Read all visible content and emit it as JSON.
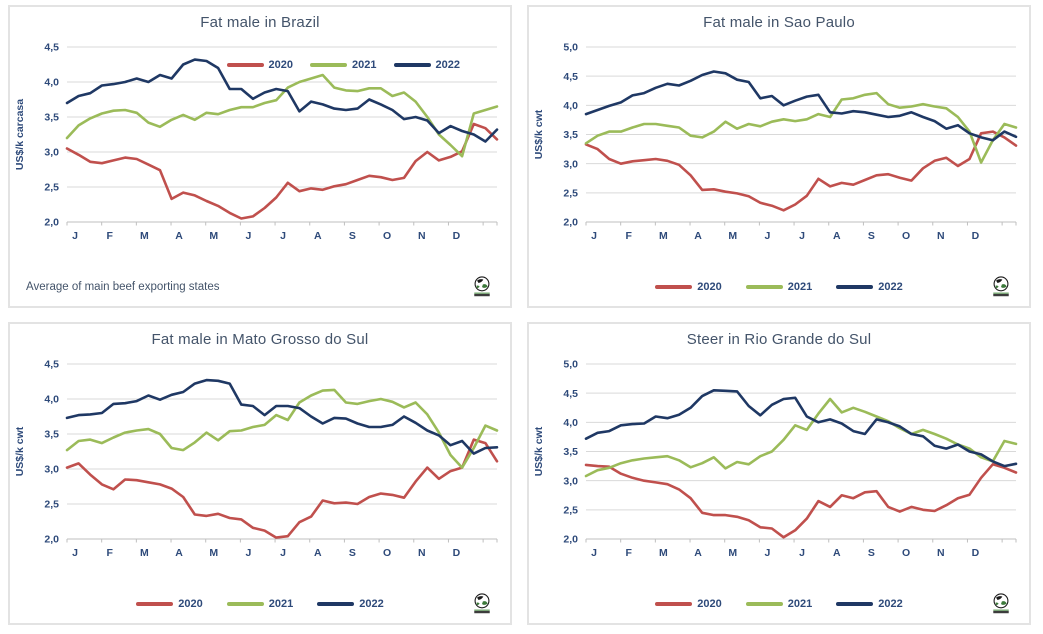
{
  "colors": {
    "red_2020": "#C0504D",
    "green_2021": "#9BBB59",
    "navy_2022": "#1F3864",
    "gridline": "#D9D9D9",
    "axis_line": "#BFBFBF",
    "tick_text": "#2E4A7A",
    "title_text": "#44546A",
    "panel_border": "#E3E3E3"
  },
  "chart_data": [
    {
      "type": "line",
      "title": "Fat male in Brazil",
      "ylabel": "US$/k carcasa",
      "xlabel": "",
      "x_categories": [
        "J",
        "F",
        "M",
        "A",
        "M",
        "J",
        "J",
        "A",
        "S",
        "O",
        "N",
        "D"
      ],
      "ylim": [
        2.0,
        4.5
      ],
      "yticks": [
        2.0,
        2.5,
        3.0,
        3.5,
        4.0,
        4.5
      ],
      "grid": "horizontal",
      "legend_position": "inside-top-right",
      "footnote": "Average  of main beef exporting states",
      "series": [
        {
          "name": "2020",
          "color": "#C0504D",
          "values": [
            3.05,
            2.96,
            2.86,
            2.84,
            2.88,
            2.92,
            2.9,
            2.82,
            2.74,
            2.33,
            2.42,
            2.38,
            2.3,
            2.23,
            2.13,
            2.05,
            2.08,
            2.2,
            2.35,
            2.56,
            2.44,
            2.48,
            2.46,
            2.51,
            2.54,
            2.6,
            2.66,
            2.64,
            2.6,
            2.63,
            2.87,
            3.0,
            2.88,
            2.93,
            3.01,
            3.4,
            3.34,
            3.18
          ]
        },
        {
          "name": "2021",
          "color": "#9BBB59",
          "values": [
            3.2,
            3.38,
            3.48,
            3.55,
            3.59,
            3.6,
            3.56,
            3.42,
            3.36,
            3.46,
            3.53,
            3.46,
            3.56,
            3.54,
            3.6,
            3.64,
            3.64,
            3.7,
            3.74,
            3.92,
            4.0,
            4.05,
            4.1,
            3.92,
            3.88,
            3.87,
            3.91,
            3.91,
            3.8,
            3.85,
            3.72,
            3.5,
            3.25,
            3.1,
            2.94,
            3.55,
            3.6,
            3.65
          ]
        },
        {
          "name": "2022",
          "color": "#1F3864",
          "values": [
            3.7,
            3.8,
            3.84,
            3.95,
            3.97,
            4.0,
            4.05,
            4.0,
            4.1,
            4.05,
            4.25,
            4.32,
            4.3,
            4.2,
            3.9,
            3.9,
            3.76,
            3.85,
            3.9,
            3.87,
            3.58,
            3.72,
            3.68,
            3.62,
            3.6,
            3.62,
            3.75,
            3.68,
            3.6,
            3.47,
            3.5,
            3.45,
            3.27,
            3.37,
            3.3,
            3.25,
            3.15,
            3.32
          ]
        }
      ]
    },
    {
      "type": "line",
      "title": "Fat male in Sao Paulo",
      "ylabel": "US$/k cwt",
      "xlabel": "",
      "x_categories": [
        "J",
        "F",
        "M",
        "A",
        "M",
        "J",
        "J",
        "A",
        "S",
        "O",
        "N",
        "D"
      ],
      "ylim": [
        2.0,
        5.0
      ],
      "yticks": [
        2.0,
        2.5,
        3.0,
        3.5,
        4.0,
        4.5,
        5.0
      ],
      "grid": "horizontal",
      "legend_position": "bottom-center",
      "footnote": "",
      "series": [
        {
          "name": "2020",
          "color": "#C0504D",
          "values": [
            3.33,
            3.25,
            3.08,
            3.0,
            3.04,
            3.06,
            3.08,
            3.05,
            2.98,
            2.8,
            2.55,
            2.56,
            2.52,
            2.49,
            2.44,
            2.33,
            2.28,
            2.2,
            2.3,
            2.45,
            2.74,
            2.61,
            2.67,
            2.64,
            2.72,
            2.8,
            2.82,
            2.76,
            2.71,
            2.92,
            3.05,
            3.1,
            2.96,
            3.08,
            3.52,
            3.55,
            3.45,
            3.31
          ]
        },
        {
          "name": "2021",
          "color": "#9BBB59",
          "values": [
            3.35,
            3.48,
            3.55,
            3.55,
            3.62,
            3.68,
            3.68,
            3.65,
            3.62,
            3.48,
            3.45,
            3.55,
            3.72,
            3.6,
            3.68,
            3.64,
            3.72,
            3.76,
            3.73,
            3.76,
            3.85,
            3.8,
            4.1,
            4.12,
            4.18,
            4.21,
            4.02,
            3.96,
            3.98,
            4.02,
            3.98,
            3.95,
            3.8,
            3.55,
            3.02,
            3.4,
            3.68,
            3.62
          ]
        },
        {
          "name": "2022",
          "color": "#1F3864",
          "values": [
            3.85,
            3.92,
            3.99,
            4.05,
            4.17,
            4.21,
            4.3,
            4.37,
            4.34,
            4.42,
            4.52,
            4.58,
            4.55,
            4.44,
            4.4,
            4.12,
            4.16,
            4.0,
            4.08,
            4.15,
            4.18,
            3.88,
            3.86,
            3.9,
            3.88,
            3.84,
            3.8,
            3.82,
            3.88,
            3.8,
            3.73,
            3.6,
            3.66,
            3.52,
            3.45,
            3.4,
            3.55,
            3.46
          ]
        }
      ]
    },
    {
      "type": "line",
      "title": "Fat male in Mato Grosso do Sul",
      "ylabel": "US$/k cwt",
      "xlabel": "",
      "x_categories": [
        "J",
        "F",
        "M",
        "A",
        "M",
        "J",
        "J",
        "A",
        "S",
        "O",
        "N",
        "D"
      ],
      "ylim": [
        2.0,
        4.5
      ],
      "yticks": [
        2.0,
        2.5,
        3.0,
        3.5,
        4.0,
        4.5
      ],
      "grid": "horizontal",
      "legend_position": "bottom-center",
      "footnote": "",
      "series": [
        {
          "name": "2020",
          "color": "#C0504D",
          "values": [
            3.02,
            3.08,
            2.92,
            2.78,
            2.71,
            2.85,
            2.84,
            2.81,
            2.78,
            2.72,
            2.6,
            2.35,
            2.33,
            2.36,
            2.3,
            2.28,
            2.16,
            2.12,
            2.02,
            2.04,
            2.24,
            2.32,
            2.55,
            2.51,
            2.52,
            2.5,
            2.6,
            2.65,
            2.63,
            2.59,
            2.82,
            3.02,
            2.86,
            2.97,
            3.02,
            3.42,
            3.37,
            3.11
          ]
        },
        {
          "name": "2021",
          "color": "#9BBB59",
          "values": [
            3.27,
            3.4,
            3.42,
            3.37,
            3.45,
            3.52,
            3.55,
            3.57,
            3.5,
            3.3,
            3.27,
            3.38,
            3.52,
            3.41,
            3.54,
            3.55,
            3.6,
            3.63,
            3.77,
            3.7,
            3.95,
            4.05,
            4.12,
            4.13,
            3.95,
            3.93,
            3.97,
            4.0,
            3.96,
            3.88,
            3.95,
            3.78,
            3.52,
            3.2,
            3.02,
            3.3,
            3.62,
            3.55
          ]
        },
        {
          "name": "2022",
          "color": "#1F3864",
          "values": [
            3.73,
            3.77,
            3.78,
            3.8,
            3.93,
            3.94,
            3.97,
            4.05,
            3.99,
            4.06,
            4.1,
            4.22,
            4.27,
            4.26,
            4.22,
            3.92,
            3.9,
            3.77,
            3.9,
            3.9,
            3.87,
            3.75,
            3.65,
            3.73,
            3.72,
            3.65,
            3.6,
            3.6,
            3.63,
            3.75,
            3.66,
            3.55,
            3.48,
            3.34,
            3.4,
            3.22,
            3.3,
            3.31
          ]
        }
      ]
    },
    {
      "type": "line",
      "title": "Steer  in Rio Grande do Sul",
      "ylabel": "US$/k cwt",
      "xlabel": "",
      "x_categories": [
        "J",
        "F",
        "M",
        "A",
        "M",
        "J",
        "J",
        "A",
        "S",
        "O",
        "N",
        "D"
      ],
      "ylim": [
        2.0,
        5.0
      ],
      "yticks": [
        2.0,
        2.5,
        3.0,
        3.5,
        4.0,
        4.5,
        5.0
      ],
      "grid": "horizontal",
      "legend_position": "bottom-center",
      "footnote": "",
      "series": [
        {
          "name": "2020",
          "color": "#C0504D",
          "values": [
            3.27,
            3.25,
            3.24,
            3.12,
            3.05,
            3.0,
            2.97,
            2.94,
            2.85,
            2.7,
            2.45,
            2.41,
            2.41,
            2.38,
            2.32,
            2.2,
            2.18,
            2.03,
            2.15,
            2.35,
            2.65,
            2.55,
            2.75,
            2.7,
            2.8,
            2.82,
            2.55,
            2.47,
            2.55,
            2.5,
            2.48,
            2.58,
            2.7,
            2.76,
            3.05,
            3.28,
            3.22,
            3.14
          ]
        },
        {
          "name": "2021",
          "color": "#9BBB59",
          "values": [
            3.08,
            3.18,
            3.22,
            3.3,
            3.35,
            3.38,
            3.4,
            3.42,
            3.35,
            3.23,
            3.3,
            3.4,
            3.21,
            3.32,
            3.28,
            3.42,
            3.5,
            3.7,
            3.95,
            3.87,
            4.15,
            4.4,
            4.17,
            4.25,
            4.18,
            4.1,
            4.02,
            3.9,
            3.8,
            3.87,
            3.8,
            3.72,
            3.62,
            3.55,
            3.4,
            3.33,
            3.68,
            3.63
          ]
        },
        {
          "name": "2022",
          "color": "#1F3864",
          "values": [
            3.72,
            3.82,
            3.85,
            3.95,
            3.97,
            3.98,
            4.1,
            4.07,
            4.13,
            4.25,
            4.45,
            4.55,
            4.54,
            4.53,
            4.28,
            4.12,
            4.3,
            4.4,
            4.42,
            4.1,
            4.0,
            4.05,
            3.98,
            3.85,
            3.8,
            4.05,
            4.0,
            3.93,
            3.8,
            3.76,
            3.6,
            3.55,
            3.62,
            3.5,
            3.45,
            3.33,
            3.25,
            3.29
          ]
        }
      ]
    }
  ]
}
